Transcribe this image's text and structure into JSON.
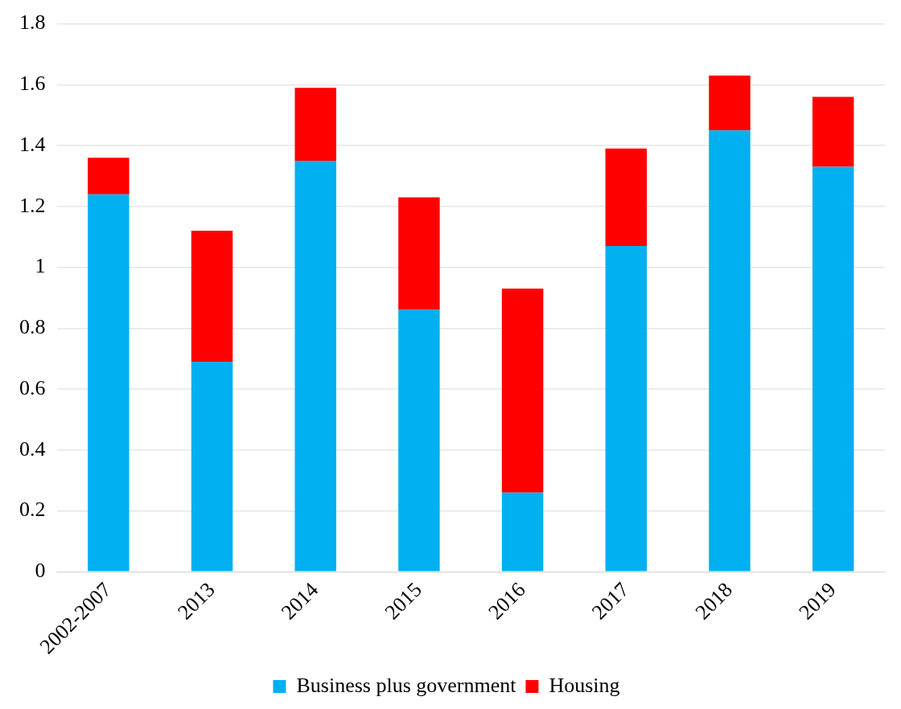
{
  "chart_data": {
    "type": "bar",
    "stacked": true,
    "categories": [
      "2002-2007",
      "2013",
      "2014",
      "2015",
      "2016",
      "2017",
      "2018",
      "2019"
    ],
    "series": [
      {
        "name": "Business plus government",
        "color": "#00b0f0",
        "values": [
          1.24,
          0.69,
          1.35,
          0.86,
          0.26,
          1.07,
          1.45,
          1.33
        ]
      },
      {
        "name": "Housing",
        "color": "#ff0000",
        "values": [
          0.12,
          0.43,
          0.24,
          0.37,
          0.67,
          0.32,
          0.18,
          0.23
        ]
      }
    ],
    "ylim": [
      0,
      1.8
    ],
    "yticks": [
      0,
      0.2,
      0.4,
      0.6,
      0.8,
      1,
      1.2,
      1.4,
      1.6,
      1.8
    ],
    "grid": "y",
    "legend": "bottom"
  }
}
